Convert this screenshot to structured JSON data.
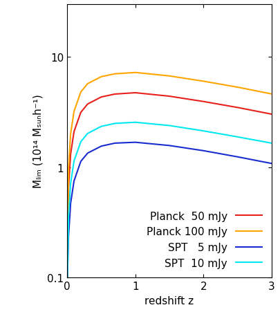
{
  "chart_data": {
    "type": "line",
    "x_label": "redshift z",
    "y_label": "Mₗᵢₘ (10¹⁴ Mₛᵤₙh⁻¹)",
    "x": [
      0.003,
      0.02,
      0.05,
      0.1,
      0.2,
      0.3,
      0.5,
      0.7,
      1.0,
      1.5,
      2.0,
      2.5,
      3.0
    ],
    "series": [
      {
        "name": "Planck  50 mJy",
        "color": "#e8201c",
        "values": [
          0.1,
          0.66,
          1.31,
          2.1,
          3.14,
          3.73,
          4.32,
          4.59,
          4.72,
          4.39,
          3.93,
          3.47,
          3.02
        ]
      },
      {
        "name": "Planck 100 mJy",
        "color": "#ffa500",
        "values": [
          0.1,
          1.0,
          2.0,
          3.2,
          4.8,
          5.7,
          6.6,
          7.0,
          7.2,
          6.7,
          6.0,
          5.3,
          4.6
        ]
      },
      {
        "name": "SPT   5 mJy",
        "color": "#1a2ccf",
        "values": [
          0.1,
          0.24,
          0.47,
          0.75,
          1.13,
          1.34,
          1.55,
          1.65,
          1.68,
          1.57,
          1.41,
          1.24,
          1.08
        ]
      },
      {
        "name": "SPT  10 mJy",
        "color": "#00e8f0",
        "values": [
          0.1,
          0.36,
          0.71,
          1.14,
          1.7,
          2.02,
          2.34,
          2.49,
          2.55,
          2.38,
          2.13,
          1.88,
          1.65
        ]
      }
    ],
    "xlim": [
      0,
      3
    ],
    "xticks": [
      0,
      1,
      2,
      3
    ],
    "ylim": [
      0.1,
      30
    ],
    "yticks": [
      0.1,
      1,
      10
    ],
    "log": "y",
    "legend": "lower right"
  }
}
